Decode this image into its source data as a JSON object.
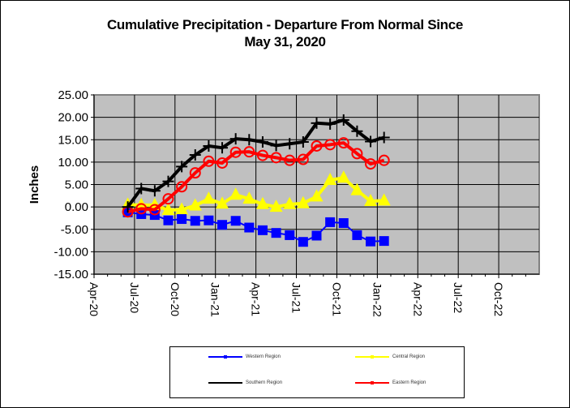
{
  "chart_data": {
    "type": "line",
    "title": "Cumulative Precipitation - Departure From Normal Since",
    "title_line2": "May 31, 2020",
    "xlabel": "",
    "ylabel": "Inches",
    "ylim": [
      -15,
      25
    ],
    "yticks": [
      25,
      20,
      15,
      10,
      5,
      0,
      -5,
      -10,
      -15
    ],
    "ytick_labels": [
      "25.00",
      "20.00",
      "15.00",
      "10.00",
      "5.00",
      "0.00",
      "-5.00",
      "-10.00",
      "-15.00"
    ],
    "x_unit": "months since Apr-20",
    "xlim": [
      0,
      33
    ],
    "xticks": [
      0,
      3,
      6,
      9,
      12,
      15,
      18,
      21,
      24,
      27,
      30
    ],
    "xtick_labels": [
      "Apr-20",
      "Jul-20",
      "Oct-20",
      "Jan-21",
      "Apr-21",
      "Jul-21",
      "Oct-21",
      "Jan-22",
      "Apr-22",
      "Jul-22",
      "Oct-22"
    ],
    "grid": true,
    "legend_position": "bottom",
    "x": [
      2.5,
      3.5,
      4.5,
      5.5,
      6.5,
      7.5,
      8.5,
      9.5,
      10.5,
      11.5,
      12.5,
      13.5,
      14.5,
      15.5,
      16.5,
      17.5,
      18.5,
      19.5,
      20.5,
      21.5
    ],
    "series": [
      {
        "name": "Western Region",
        "color": "#0000ff",
        "marker": "square",
        "values": [
          -1.2,
          -1.6,
          -1.8,
          -3.0,
          -2.7,
          -3.1,
          -3.0,
          -4.0,
          -3.1,
          -4.6,
          -5.2,
          -5.8,
          -6.3,
          -7.8,
          -6.4,
          -3.4,
          -3.6,
          -6.3,
          -7.7,
          -7.6
        ]
      },
      {
        "name": "Central Region",
        "color": "#ffff00",
        "marker": "triangle",
        "values": [
          0.5,
          0.4,
          0.4,
          -0.7,
          -0.6,
          0.3,
          1.8,
          0.7,
          2.7,
          1.8,
          0.6,
          0.0,
          0.6,
          0.8,
          2.3,
          6.0,
          6.5,
          3.7,
          1.3,
          1.4
        ]
      },
      {
        "name": "Southern Region",
        "color": "#000000",
        "marker": "plus",
        "values": [
          0.0,
          4.1,
          3.6,
          5.7,
          9.0,
          11.6,
          13.6,
          13.2,
          15.2,
          15.0,
          14.5,
          13.7,
          14.1,
          14.5,
          18.7,
          18.5,
          19.4,
          16.9,
          14.6,
          15.5
        ]
      },
      {
        "name": "Eastern Region",
        "color": "#ff0000",
        "marker": "circle",
        "values": [
          -1.1,
          -0.4,
          -0.6,
          1.8,
          4.5,
          7.6,
          10.2,
          9.8,
          12.2,
          12.3,
          11.5,
          11.0,
          10.4,
          10.6,
          13.6,
          13.9,
          14.3,
          11.9,
          9.6,
          10.4
        ]
      }
    ],
    "legend_order": [
      "Western Region",
      "Central Region",
      "Southern Region",
      "Eastern Region"
    ]
  },
  "colors": {
    "plot_bg": "#c0c0c0",
    "grid": "#000000"
  }
}
